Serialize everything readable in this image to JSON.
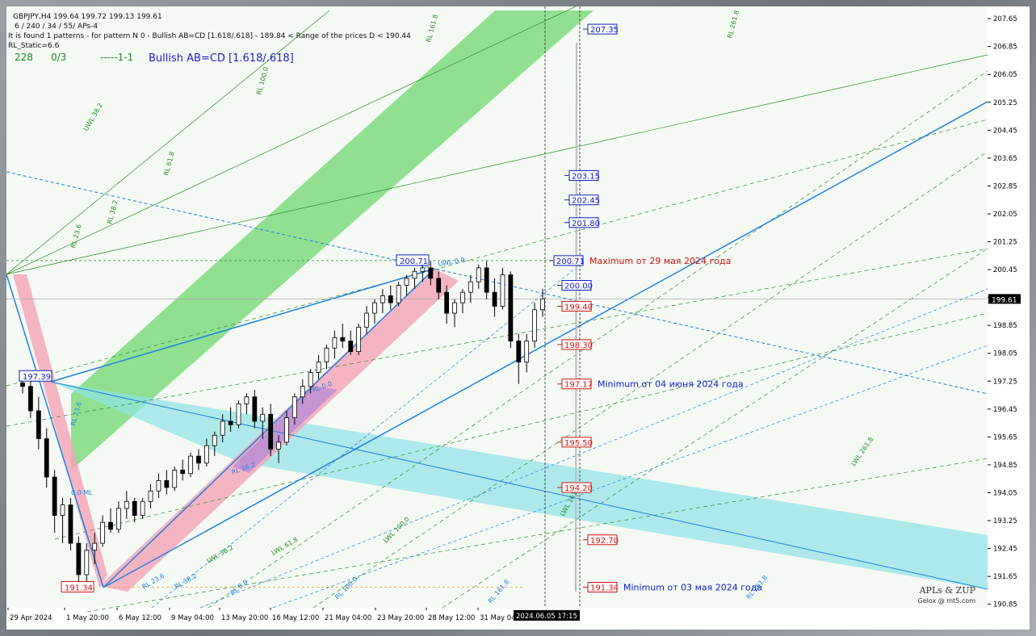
{
  "chart_data": {
    "type": "candlestick",
    "symbol_header": "GBPJPY,H4  199.64 199.72 199.13 199.61",
    "info_lines": [
      "6 / 240 / 34 / 55/ APs-4",
      "It is found 1 patterns  -  for pattern N 0  - Bullish AB=CD [1.618/.618] - 189.84 < Range of the prices D < 190.44",
      "RL_Static=6.6"
    ],
    "stats": {
      "count": "228",
      "ratio": "0/3",
      "line": "-----1-1"
    },
    "pattern_title": "Bullish AB=CD [1.618/.618]",
    "current_price": "199.61",
    "current_price_value": 199.61,
    "ylim": [
      190.75,
      208.0
    ],
    "yticks": [
      207.65,
      206.85,
      206.05,
      205.25,
      204.45,
      203.65,
      202.85,
      202.05,
      201.25,
      200.45,
      199.65,
      198.85,
      198.05,
      197.25,
      196.45,
      195.65,
      194.85,
      194.05,
      193.25,
      192.45,
      191.65,
      190.85
    ],
    "xticks": [
      "29 Apr 2024",
      "1 May 20:00",
      "6 May 12:00",
      "9 May 04:00",
      "13 May 20:00",
      "16 May 12:00",
      "21 May 04:00",
      "23 May 20:00",
      "28 May 12:00",
      "31 May 04:00"
    ],
    "cursor_time": "2024.06.05 17:15",
    "price_levels": [
      {
        "value": 207.35,
        "label": "207.35",
        "color": "#1020c0"
      },
      {
        "value": 203.15,
        "label": "203.15",
        "color": "#1020c0"
      },
      {
        "value": 202.45,
        "label": "202.45",
        "color": "#1020c0"
      },
      {
        "value": 201.8,
        "label": "201.80",
        "color": "#1020c0"
      },
      {
        "value": 200.71,
        "label": "200.71",
        "color": "#1020c0",
        "note": "Maximum от 29 мая 2024 года",
        "note_color": "#d01010"
      },
      {
        "value": 200.0,
        "label": "200.00",
        "color": "#1020c0"
      },
      {
        "value": 199.4,
        "label": "199.40",
        "color": "#d01010"
      },
      {
        "value": 198.3,
        "label": "198.30",
        "color": "#d01010"
      },
      {
        "value": 197.17,
        "label": "197.17",
        "color": "#d01010",
        "note": "Minimum от 04 июня 2024 года",
        "note_color": "#1020c0"
      },
      {
        "value": 195.5,
        "label": "195.50",
        "color": "#d01010"
      },
      {
        "value": 194.2,
        "label": "194.20",
        "color": "#d01010"
      },
      {
        "value": 192.7,
        "label": "192.70",
        "color": "#d01010"
      },
      {
        "value": 191.34,
        "label": "191.34",
        "color": "#d01010",
        "note": "Minimum от 03 мая 2024 года",
        "note_color": "#1020c0"
      }
    ],
    "left_labels": {
      "a": "197.39",
      "b": "191.34",
      "c": "200.71"
    },
    "fan_labels": [
      "UWL 38.2",
      "RL 61.8",
      "RL 38.2",
      "RL 23.6",
      "RL 100.0",
      "RL 161.8",
      "RL 261.8",
      "UWL 0.0",
      "RL 0.0",
      "LWL 38.2",
      "LWL 61.8",
      "LWL 100.0",
      "LWL 161.8",
      "LWL 261.8",
      "RL 23.6",
      "RL 38.2",
      "RL 0.0",
      "RL 100.0",
      "RL 161.8",
      "RL 261.8",
      "0.0 ML",
      "RL 23.6",
      "RL 38.2"
    ],
    "watermark": [
      "APLs & ZUP",
      "Gelox @ mt5.com"
    ],
    "candles": [
      [
        197.2,
        197.4,
        196.9,
        197.1
      ],
      [
        197.1,
        197.35,
        196.2,
        196.4
      ],
      [
        196.4,
        196.8,
        195.3,
        195.6
      ],
      [
        195.6,
        195.9,
        194.2,
        194.5
      ],
      [
        194.5,
        194.7,
        192.9,
        193.4
      ],
      [
        193.4,
        193.9,
        192.6,
        193.7
      ],
      [
        193.7,
        193.9,
        192.4,
        192.6
      ],
      [
        192.6,
        192.8,
        191.34,
        191.7
      ],
      [
        191.7,
        192.6,
        191.5,
        192.4
      ],
      [
        192.4,
        192.9,
        192.0,
        192.6
      ],
      [
        192.6,
        193.4,
        192.5,
        193.2
      ],
      [
        193.2,
        193.6,
        192.9,
        193.0
      ],
      [
        193.0,
        193.8,
        192.9,
        193.6
      ],
      [
        193.6,
        194.1,
        193.3,
        193.8
      ],
      [
        193.8,
        193.9,
        193.2,
        193.4
      ],
      [
        193.4,
        193.9,
        193.3,
        193.8
      ],
      [
        193.8,
        194.3,
        193.6,
        194.1
      ],
      [
        194.1,
        194.6,
        193.9,
        194.4
      ],
      [
        194.4,
        194.7,
        194.0,
        194.2
      ],
      [
        194.2,
        194.8,
        194.1,
        194.7
      ],
      [
        194.7,
        195.0,
        194.4,
        194.6
      ],
      [
        194.6,
        195.2,
        194.5,
        195.1
      ],
      [
        195.1,
        195.3,
        194.7,
        194.9
      ],
      [
        194.9,
        195.6,
        194.8,
        195.4
      ],
      [
        195.4,
        195.8,
        195.1,
        195.7
      ],
      [
        195.7,
        196.3,
        195.5,
        196.1
      ],
      [
        196.1,
        196.5,
        195.8,
        196.0
      ],
      [
        196.0,
        196.7,
        195.9,
        196.6
      ],
      [
        196.6,
        196.9,
        196.3,
        196.8
      ],
      [
        196.8,
        197.0,
        195.9,
        196.1
      ],
      [
        196.1,
        196.5,
        195.6,
        196.3
      ],
      [
        196.3,
        196.6,
        195.1,
        195.3
      ],
      [
        195.3,
        195.7,
        194.9,
        195.5
      ],
      [
        195.5,
        196.4,
        195.4,
        196.2
      ],
      [
        196.2,
        196.9,
        196.0,
        196.8
      ],
      [
        196.8,
        197.3,
        196.6,
        197.1
      ],
      [
        197.1,
        197.6,
        196.9,
        197.5
      ],
      [
        197.5,
        198.0,
        197.3,
        197.8
      ],
      [
        197.8,
        198.3,
        197.6,
        198.2
      ],
      [
        198.2,
        198.7,
        197.9,
        198.5
      ],
      [
        198.5,
        198.9,
        198.2,
        198.4
      ],
      [
        198.4,
        198.7,
        198.0,
        198.1
      ],
      [
        198.1,
        198.9,
        198.0,
        198.8
      ],
      [
        198.8,
        199.4,
        198.6,
        199.2
      ],
      [
        199.2,
        199.6,
        198.9,
        199.5
      ],
      [
        199.5,
        199.9,
        199.2,
        199.7
      ],
      [
        199.7,
        200.0,
        199.3,
        199.5
      ],
      [
        199.5,
        200.1,
        199.4,
        200.0
      ],
      [
        200.0,
        200.3,
        199.7,
        200.2
      ],
      [
        200.2,
        200.5,
        199.9,
        200.4
      ],
      [
        200.4,
        200.71,
        200.1,
        200.5
      ],
      [
        200.5,
        200.7,
        200.0,
        200.2
      ],
      [
        200.2,
        200.4,
        199.6,
        199.8
      ],
      [
        199.8,
        200.0,
        198.9,
        199.2
      ],
      [
        199.2,
        199.6,
        198.8,
        199.5
      ],
      [
        199.5,
        199.9,
        199.2,
        199.8
      ],
      [
        199.8,
        200.3,
        199.5,
        200.1
      ],
      [
        200.1,
        200.6,
        199.9,
        200.5
      ],
      [
        200.5,
        200.7,
        199.6,
        199.8
      ],
      [
        199.8,
        200.2,
        199.1,
        199.4
      ],
      [
        199.4,
        200.5,
        199.3,
        200.3
      ],
      [
        200.3,
        200.4,
        198.2,
        198.4
      ],
      [
        198.4,
        198.6,
        197.17,
        197.8
      ],
      [
        197.8,
        198.6,
        197.5,
        198.4
      ],
      [
        198.4,
        199.5,
        198.2,
        199.3
      ],
      [
        199.3,
        199.9,
        199.1,
        199.61
      ]
    ]
  }
}
